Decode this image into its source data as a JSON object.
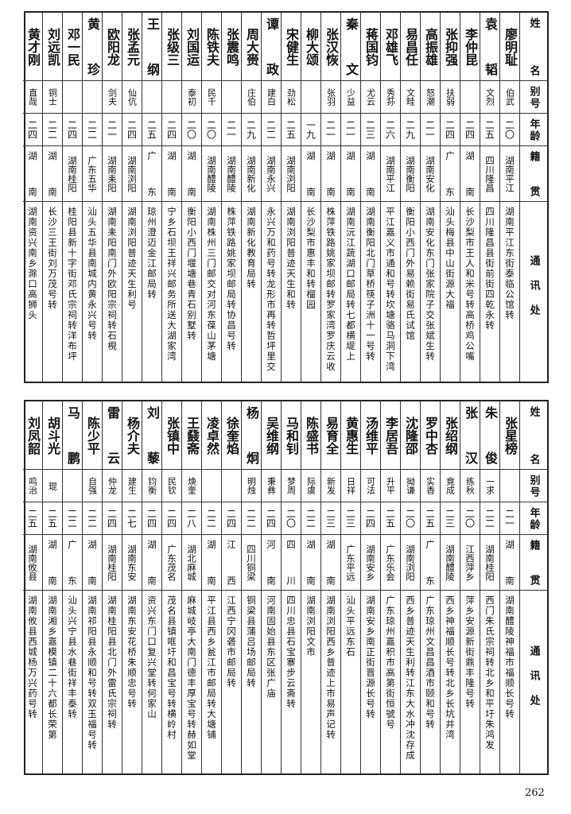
{
  "headers": {
    "name": "姓名",
    "alias": "别号",
    "age": "年龄",
    "origin": "籍贯",
    "address": "通讯处"
  },
  "top": [
    {
      "name": "廖明耻",
      "alias": "伯武",
      "age": "二〇",
      "origin": "湖南平江",
      "address": "湖南平江东街泰临公馆转"
    },
    {
      "name": "袁韬",
      "alias": "文烈",
      "age": "二五",
      "origin": "四川隆昌",
      "address": "四川隆昌县街前街四乾永转"
    },
    {
      "name": "李仲昆",
      "alias": "",
      "age": "二四",
      "origin": "湖南",
      "address": "长沙梨市王人和米号转高桥鸡公嘴"
    },
    {
      "name": "张抑强",
      "alias": "扶弱",
      "age": "二四",
      "origin": "广东",
      "address": "汕头梅县中山街源大福"
    },
    {
      "name": "高振雄",
      "alias": "怒潮",
      "age": "二一",
      "origin": "湖南安化",
      "address": "湖南安化东门张家院子交张斌生转"
    },
    {
      "name": "易昌任",
      "alias": "文畦",
      "age": "二九",
      "origin": "湖南衡阳",
      "address": "衡阳小西门外易赖街易氏试馆"
    },
    {
      "name": "邓雄飞",
      "alias": "秀荪",
      "age": "二六",
      "origin": "湖南平江",
      "address": "平江嘉义市通和号转坎塘骆马洞下湾"
    },
    {
      "name": "蒋国钧",
      "alias": "尤云",
      "age": "二三",
      "origin": "湖南",
      "address": "湖南衡阳北门草桥筷子洲十一号转"
    },
    {
      "name": "秦文",
      "alias": "少益",
      "age": "二一",
      "origin": "湖南",
      "address": "湖南沅江蔬湖口邮局转七都横堤上"
    },
    {
      "name": "张汉恢",
      "alias": "张羽",
      "age": "二一",
      "origin": "湖南",
      "address": "株萍铁路姚家坝邮转罗家湾罗庆云收"
    },
    {
      "name": "柳大颂",
      "alias": "",
      "age": "一九",
      "origin": "湖南",
      "address": "长沙梨市惠丰和转榴园"
    },
    {
      "name": "宋健生",
      "alias": "劲松",
      "age": "二五",
      "origin": "湖南浏阳",
      "address": "湖南浏阳普迹天生和转"
    },
    {
      "name": "谭政",
      "alias": "建白",
      "age": "二二",
      "origin": "湖南永兴",
      "address": "永兴万和药号转龙形市再转哲坪里交"
    },
    {
      "name": "周大赍",
      "alias": "庄伯",
      "age": "二九",
      "origin": "湖南新化",
      "address": "湖南新化教育局转"
    },
    {
      "name": "张震鸣",
      "alias": "",
      "age": "二一",
      "origin": "湖南醴陵",
      "address": "株萍铁路姚家坝邮局转协昌号转"
    },
    {
      "name": "陈铁夫",
      "alias": "民千",
      "age": "二〇",
      "origin": "湖南醴陵",
      "address": "湖南株州三门邮交对河东葆山茅塘"
    },
    {
      "name": "刘国运",
      "alias": "泰初",
      "age": "二〇",
      "origin": "湖南",
      "address": "衡阳小西门堰塘巷青石别墅转"
    },
    {
      "name": "张级三",
      "alias": "",
      "age": "二四",
      "origin": "湖南",
      "address": "宁乡石坝王祥兴邮务所送大湖家湾"
    },
    {
      "name": "王纲",
      "alias": "",
      "age": "二五",
      "origin": "广东",
      "address": "琼州澄迈金江邮局转"
    },
    {
      "name": "张孟元",
      "alias": "仙伉",
      "age": "二四",
      "origin": "湖南浏阳",
      "address": "湖南浏阳普迹天生利号"
    },
    {
      "name": "欧阳龙",
      "alias": "剑夫",
      "age": "二一",
      "origin": "湖南耒阳",
      "address": "湖南耒阳南门外欧阳宗祠转石梘"
    },
    {
      "name": "黄珍",
      "alias": "",
      "age": "二二",
      "origin": "广东五华",
      "address": "汕头五华县南城内黄永兴号转"
    },
    {
      "name": "邓一民",
      "alias": "",
      "age": "二四",
      "origin": "湖南桂阳",
      "address": "桂阳县新十字街邓氏宗祠转洋布坪"
    },
    {
      "name": "刘远凯",
      "alias": "铜士",
      "age": "二二",
      "origin": "湖南",
      "address": "长沙三王街刘万茂号转"
    },
    {
      "name": "黄才刚",
      "alias": "直哉",
      "age": "二四",
      "origin": "湖南",
      "address": "湖南资兴南乡滁口高狮头"
    }
  ],
  "bottom": [
    {
      "name": "张星榜",
      "alias": "",
      "age": "二一",
      "origin": "湖南",
      "address": "湖南醴陵神福市福顺长号转"
    },
    {
      "name": "朱俊",
      "alias": "一求",
      "age": "二二",
      "origin": "湖南桂阳",
      "address": "西门朱氏宗祠转北乡和平圩朱鸿发"
    },
    {
      "name": "张汉",
      "alias": "练秋",
      "age": "二〇",
      "origin": "江西萍乡",
      "address": "萍乡安源新街鼎丰隆号转"
    },
    {
      "name": "张绍纲",
      "alias": "竟成",
      "age": "二三",
      "origin": "湖南醴陵",
      "address": "西乡神福顺长号转北乡长坑井湾"
    },
    {
      "name": "罗中杏",
      "alias": "实香",
      "age": "二五",
      "origin": "广东",
      "address": "广东琼州文昌昌酒市颐和号转"
    },
    {
      "name": "沈隆邵",
      "alias": "拗谦",
      "age": "二〇",
      "origin": "湖南浏阳",
      "address": "西乡普迹天生利转江东大水冲沈存成"
    },
    {
      "name": "李居吾",
      "alias": "升平",
      "age": "二五",
      "origin": "广东乐会",
      "address": "广东琼州嘉积市高第街恒號号"
    },
    {
      "name": "汤维平",
      "alias": "可法",
      "age": "二四",
      "origin": "湖南安乡",
      "address": "湖南安乡南正街晋源长号转"
    },
    {
      "name": "黄惠生",
      "alias": "日祥",
      "age": "二三",
      "origin": "广东平远",
      "address": "汕头平远东石"
    },
    {
      "name": "易育全",
      "alias": "新发",
      "age": "二三",
      "origin": "湖南",
      "address": "湖南浏阳西乡普迹上市易声记转"
    },
    {
      "name": "陈盛书",
      "alias": "际虞",
      "age": "二二",
      "origin": "湖南",
      "address": "湖南浏阳文市"
    },
    {
      "name": "马和钊",
      "alias": "梦周",
      "age": "二〇",
      "origin": "四川",
      "address": "四川忠县石宝寨步云斋转"
    },
    {
      "name": "吴维纲",
      "alias": "秉彝",
      "age": "二四",
      "origin": "河南",
      "address": "河南固始县东区张广庙"
    },
    {
      "name": "杨炯",
      "alias": "明烛",
      "age": "二二",
      "origin": "四川铜梁",
      "address": "铜梁县蒲吕场邮局转"
    },
    {
      "name": "徐奎焰",
      "alias": "",
      "age": "二四",
      "origin": "江西",
      "address": "江西宁冈砻市邮局转"
    },
    {
      "name": "凌卓然",
      "alias": "",
      "age": "二二",
      "origin": "湖南",
      "address": "平江县西乡瓮江市邮局转大塘铺"
    },
    {
      "name": "王鼗斋",
      "alias": "焕奎",
      "age": "二八",
      "origin": "湖北麻城",
      "address": "麻城岐亭大南门德丰厚宝号转赫如堂"
    },
    {
      "name": "张镇中",
      "alias": "民钦",
      "age": "二四",
      "origin": "广东茂名",
      "address": "茂名县镇哐圩和昌宝号转横岭村"
    },
    {
      "name": "刘藜",
      "alias": "钧衡",
      "age": "二四",
      "origin": "湖南",
      "address": "资兴东门口复兴堂转何家山"
    },
    {
      "name": "杨介夫",
      "alias": "建生",
      "age": "二七",
      "origin": "湖南东安",
      "address": "湖南东安花桥朱顺忠号转"
    },
    {
      "name": "雷云",
      "alias": "仲龙",
      "age": "二四",
      "origin": "湖南桂阳",
      "address": "湖南桂阳县北门外雷氏宗祠转"
    },
    {
      "name": "陈少平",
      "alias": "自强",
      "age": "二二",
      "origin": "湖南",
      "address": "湖南祁阳县永顺和号转双玉福号转"
    },
    {
      "name": "马鹏",
      "alias": "",
      "age": "二二",
      "origin": "广东",
      "address": "汕头兴宁县水巷街祥丰泰转"
    },
    {
      "name": "胡斗光",
      "alias": "琨",
      "age": "二五",
      "origin": "湖南",
      "address": "湖南湘乡嘉模镇二十六都长荣第"
    },
    {
      "name": "刘凤韶",
      "alias": "鸣治",
      "age": "二五",
      "origin": "湖南攸县",
      "address": "湖南攸县西城杨万兴药号转"
    }
  ],
  "page_number": "262"
}
